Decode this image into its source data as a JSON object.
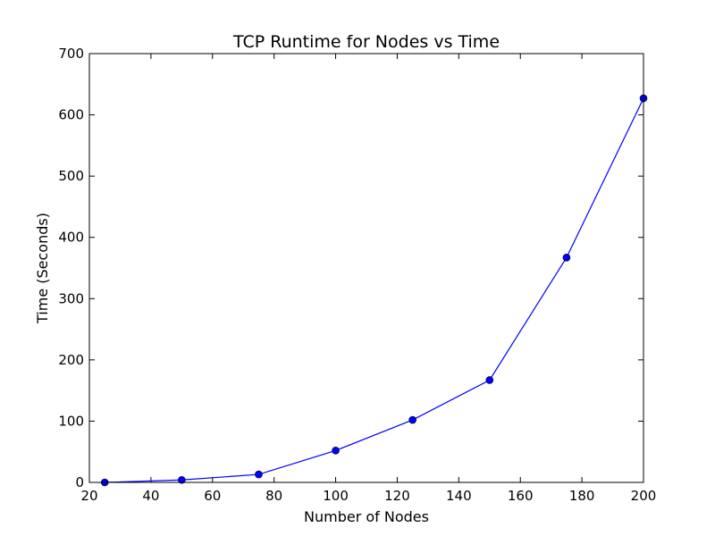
{
  "chart_data": {
    "type": "line",
    "title": "TCP Runtime for Nodes vs Time",
    "xlabel": "Number of Nodes",
    "ylabel": "Time (Seconds)",
    "xlim": [
      20,
      200
    ],
    "ylim": [
      0,
      700
    ],
    "xticks": [
      20,
      40,
      60,
      80,
      100,
      120,
      140,
      160,
      180,
      200
    ],
    "yticks": [
      0,
      100,
      200,
      300,
      400,
      500,
      600,
      700
    ],
    "grid": false,
    "legend": "none",
    "series": [
      {
        "color": "#0000ff",
        "marker": "circle",
        "points": [
          {
            "x": 25,
            "y": 0
          },
          {
            "x": 50,
            "y": 4
          },
          {
            "x": 75,
            "y": 13
          },
          {
            "x": 100,
            "y": 52
          },
          {
            "x": 125,
            "y": 102
          },
          {
            "x": 150,
            "y": 167
          },
          {
            "x": 175,
            "y": 367
          },
          {
            "x": 200,
            "y": 627
          }
        ]
      }
    ]
  }
}
